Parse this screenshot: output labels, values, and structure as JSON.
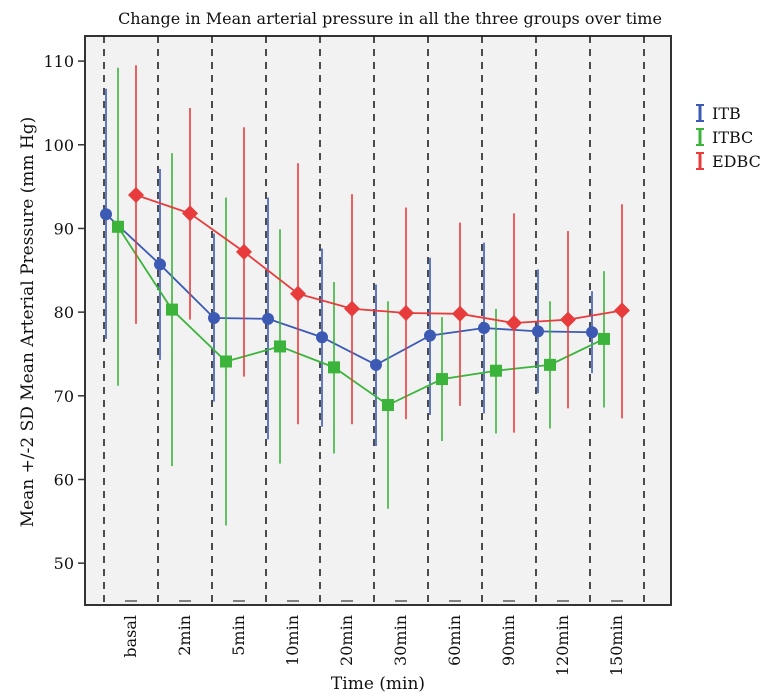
{
  "chart_data": {
    "type": "line",
    "title": "Change in Mean arterial pressure in all the three groups over time",
    "xlabel": "Time (min)",
    "ylabel": "Mean +/-2 SD Mean Arterial Pressure (mm Hg)",
    "categories": [
      "basal",
      "2min",
      "5min",
      "10min",
      "20min",
      "30min",
      "60min",
      "90min",
      "120min",
      "150min"
    ],
    "ylim": [
      45,
      113
    ],
    "yticks": [
      50,
      60,
      70,
      80,
      90,
      100,
      110
    ],
    "grid": "vertical dashed separators between time points",
    "legend_position": "right",
    "error_bars": "mean +/- 2 SD",
    "series": [
      {
        "name": "ITB",
        "color": "#3c5ab4",
        "marker": "circle",
        "values": [
          91.7,
          85.7,
          79.3,
          79.2,
          77.0,
          73.7,
          77.2,
          78.1,
          77.7,
          77.6
        ],
        "lower": [
          76.8,
          74.3,
          69.3,
          64.8,
          66.3,
          64.0,
          67.7,
          67.9,
          70.3,
          72.7
        ],
        "upper": [
          106.7,
          97.1,
          89.4,
          93.7,
          87.6,
          83.3,
          86.5,
          88.3,
          85.1,
          82.5
        ]
      },
      {
        "name": "ITBC",
        "color": "#3cb43c",
        "marker": "square",
        "values": [
          90.2,
          80.3,
          74.1,
          75.9,
          73.4,
          68.9,
          72.0,
          73.0,
          73.7,
          76.8
        ],
        "lower": [
          71.2,
          61.6,
          54.5,
          61.9,
          63.1,
          56.5,
          64.6,
          65.5,
          66.1,
          68.6
        ],
        "upper": [
          109.2,
          99.0,
          93.7,
          89.9,
          83.6,
          81.3,
          79.4,
          80.4,
          81.3,
          84.9
        ]
      },
      {
        "name": "EDBC",
        "color": "#e83c3c",
        "marker": "diamond",
        "values": [
          94.0,
          91.8,
          87.2,
          82.2,
          80.4,
          79.9,
          79.8,
          78.7,
          79.1,
          80.2
        ],
        "lower": [
          78.6,
          79.1,
          72.3,
          66.6,
          66.6,
          67.2,
          68.8,
          65.6,
          68.5,
          67.3
        ],
        "upper": [
          109.5,
          104.4,
          102.1,
          97.8,
          94.1,
          92.5,
          90.7,
          91.8,
          89.7,
          92.9
        ]
      }
    ]
  }
}
